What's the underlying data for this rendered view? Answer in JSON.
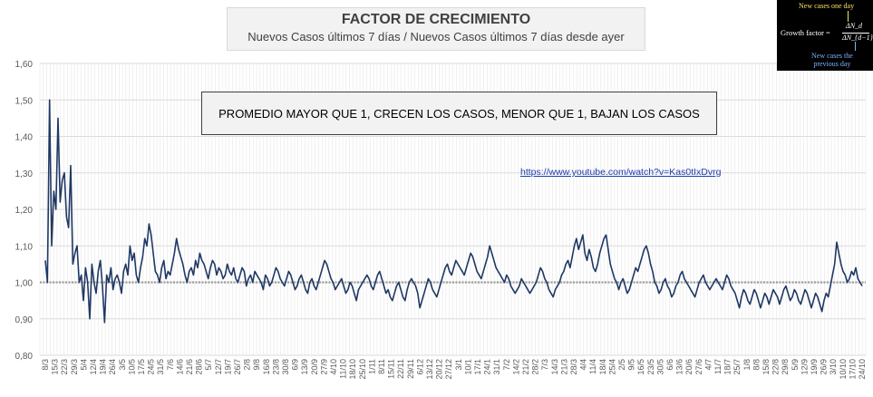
{
  "title": "FACTOR DE CRECIMIENTO",
  "subtitle": "Nuevos Casos últimos 7 días / Nuevos Casos últimos 7 días desde ayer",
  "note": "PROMEDIO MAYOR QUE 1, CRECEN LOS CASOS, MENOR QUE 1, BAJAN LOS CASOS",
  "link": "https://www.youtube.com/watch?v=Kas0tIxDvrg",
  "formula": {
    "top_label": "New cases one day",
    "growth_label": "Growth factor =",
    "numerator": "ΔN_d",
    "denominator": "ΔN_{d−1}",
    "bottom_label_1": "New cases the",
    "bottom_label_2": "previous day"
  },
  "colors": {
    "series": "#1f3864",
    "reference": "#a6a6a6",
    "grid": "#d9d9d9"
  },
  "chart_data": {
    "type": "line",
    "title": "FACTOR DE CRECIMIENTO",
    "subtitle": "Nuevos Casos últimos 7 días / Nuevos Casos últimos 7 días desde ayer",
    "ylim": [
      0.8,
      1.6
    ],
    "yticks": [
      "0,80",
      "0,90",
      "1,00",
      "1,10",
      "1,20",
      "1,30",
      "1,40",
      "1,50",
      "1,60"
    ],
    "xtick_labels": [
      "8/3",
      "15/3",
      "22/3",
      "29/3",
      "5/4",
      "12/4",
      "19/4",
      "26/4",
      "3/5",
      "10/5",
      "17/5",
      "24/5",
      "31/5",
      "7/6",
      "14/6",
      "21/6",
      "28/6",
      "5/7",
      "12/7",
      "19/7",
      "26/7",
      "2/8",
      "9/8",
      "16/8",
      "23/8",
      "30/8",
      "6/9",
      "13/9",
      "20/9",
      "27/9",
      "4/10",
      "11/10",
      "18/10",
      "25/10",
      "1/11",
      "8/11",
      "15/11",
      "22/11",
      "29/11",
      "6/12",
      "13/12",
      "20/12",
      "27/12",
      "3/1",
      "10/1",
      "17/1",
      "24/1",
      "31/1",
      "7/2",
      "14/2",
      "21/2",
      "28/2",
      "7/3",
      "14/3",
      "21/3",
      "28/3",
      "4/4",
      "11/4",
      "18/4",
      "25/4",
      "2/5",
      "9/5",
      "16/5",
      "23/5",
      "30/5",
      "6/6",
      "13/6",
      "20/6",
      "27/6",
      "4/7",
      "11/7",
      "18/7",
      "25/7",
      "1/8",
      "8/8",
      "15/8",
      "22/8",
      "29/8",
      "5/9",
      "12/9",
      "19/9",
      "26/9",
      "3/10",
      "10/10",
      "17/10",
      "24/10"
    ],
    "reference_line": 1.0,
    "grid": true,
    "series": [
      {
        "values": [
          1.06,
          1.0,
          1.5,
          1.1,
          1.25,
          1.2,
          1.45,
          1.22,
          1.28,
          1.3,
          1.18,
          1.15,
          1.32,
          1.05,
          1.08,
          1.1,
          1.0,
          1.02,
          0.95,
          1.04,
          1.0,
          0.9,
          1.05,
          1.0,
          0.97,
          1.03,
          1.06,
          0.99,
          0.89,
          1.02,
          1.0,
          1.04,
          0.98,
          1.01,
          1.02,
          1.0,
          0.97,
          1.03,
          1.05,
          1.02,
          1.1,
          1.06,
          1.08,
          1.02,
          1.0,
          1.04,
          1.07,
          1.12,
          1.1,
          1.16,
          1.13,
          1.08,
          1.03,
          1.02,
          1.0,
          1.04,
          1.06,
          1.01,
          1.03,
          1.02,
          1.05,
          1.08,
          1.12,
          1.09,
          1.07,
          1.05,
          1.02,
          1.0,
          1.03,
          1.04,
          1.02,
          1.06,
          1.04,
          1.08,
          1.06,
          1.05,
          1.03,
          1.01,
          1.04,
          1.06,
          1.05,
          1.02,
          1.04,
          1.03,
          1.01,
          1.02,
          1.05,
          1.03,
          1.02,
          1.04,
          1.01,
          1.0,
          1.02,
          1.04,
          1.03,
          0.99,
          1.01,
          1.02,
          1.0,
          1.03,
          1.02,
          1.01,
          1.0,
          0.98,
          1.02,
          1.01,
          0.99,
          1.0,
          1.02,
          1.04,
          1.03,
          1.01,
          1.0,
          0.99,
          1.01,
          1.03,
          1.02,
          1.0,
          0.98,
          0.99,
          1.01,
          1.02,
          1.0,
          0.98,
          0.97,
          1.0,
          1.01,
          0.99,
          0.98,
          1.0,
          1.02,
          1.04,
          1.06,
          1.05,
          1.03,
          1.01,
          1.0,
          0.98,
          0.99,
          1.0,
          1.01,
          0.99,
          0.97,
          0.98,
          1.0,
          0.99,
          0.97,
          0.95,
          0.98,
          0.99,
          1.0,
          1.01,
          1.02,
          1.01,
          0.99,
          0.98,
          1.0,
          1.02,
          1.03,
          1.01,
          0.99,
          0.97,
          0.98,
          0.96,
          0.95,
          0.97,
          0.99,
          1.0,
          0.98,
          0.96,
          0.95,
          0.98,
          1.0,
          1.01,
          1.0,
          0.99,
          0.97,
          0.93,
          0.95,
          0.97,
          0.99,
          1.01,
          1.0,
          0.98,
          0.97,
          0.96,
          0.98,
          1.0,
          1.02,
          1.04,
          1.05,
          1.03,
          1.02,
          1.04,
          1.06,
          1.05,
          1.04,
          1.03,
          1.02,
          1.04,
          1.06,
          1.08,
          1.07,
          1.05,
          1.03,
          1.02,
          1.01,
          1.03,
          1.05,
          1.07,
          1.1,
          1.08,
          1.06,
          1.04,
          1.03,
          1.02,
          1.01,
          1.0,
          1.02,
          1.01,
          0.99,
          0.98,
          0.97,
          0.98,
          0.99,
          1.01,
          1.0,
          0.99,
          0.98,
          0.97,
          0.98,
          0.99,
          1.0,
          1.02,
          1.04,
          1.03,
          1.01,
          1.0,
          0.98,
          0.97,
          0.96,
          0.98,
          0.99,
          1.0,
          1.02,
          1.03,
          1.05,
          1.06,
          1.04,
          1.07,
          1.1,
          1.12,
          1.09,
          1.11,
          1.13,
          1.08,
          1.06,
          1.09,
          1.07,
          1.04,
          1.03,
          1.05,
          1.08,
          1.1,
          1.12,
          1.13,
          1.09,
          1.05,
          1.03,
          1.01,
          1.0,
          0.98,
          1.0,
          1.01,
          0.99,
          0.97,
          0.98,
          1.0,
          1.02,
          1.04,
          1.03,
          1.05,
          1.07,
          1.09,
          1.1,
          1.08,
          1.05,
          1.03,
          1.0,
          0.99,
          0.97,
          0.98,
          1.0,
          1.01,
          0.99,
          0.98,
          0.96,
          0.97,
          0.99,
          1.0,
          1.02,
          1.03,
          1.01,
          1.0,
          0.99,
          0.98,
          0.97,
          0.96,
          0.98,
          1.0,
          1.01,
          1.02,
          1.0,
          0.99,
          0.98,
          0.99,
          1.0,
          1.01,
          1.0,
          0.99,
          0.98,
          1.0,
          1.02,
          1.01,
          0.99,
          0.98,
          0.97,
          0.95,
          0.93,
          0.96,
          0.98,
          0.97,
          0.95,
          0.94,
          0.96,
          0.98,
          0.97,
          0.95,
          0.93,
          0.95,
          0.97,
          0.96,
          0.94,
          0.96,
          0.98,
          0.97,
          0.96,
          0.94,
          0.96,
          0.98,
          0.99,
          0.97,
          0.95,
          0.96,
          0.98,
          0.97,
          0.95,
          0.94,
          0.96,
          0.98,
          0.97,
          0.95,
          0.93,
          0.95,
          0.97,
          0.96,
          0.94,
          0.92,
          0.95,
          0.97,
          0.96,
          0.99,
          1.02,
          1.05,
          1.11,
          1.08,
          1.05,
          1.03,
          1.02,
          1.0,
          1.01,
          1.03,
          1.02,
          1.04,
          1.01,
          1.0,
          0.99
        ]
      }
    ]
  }
}
